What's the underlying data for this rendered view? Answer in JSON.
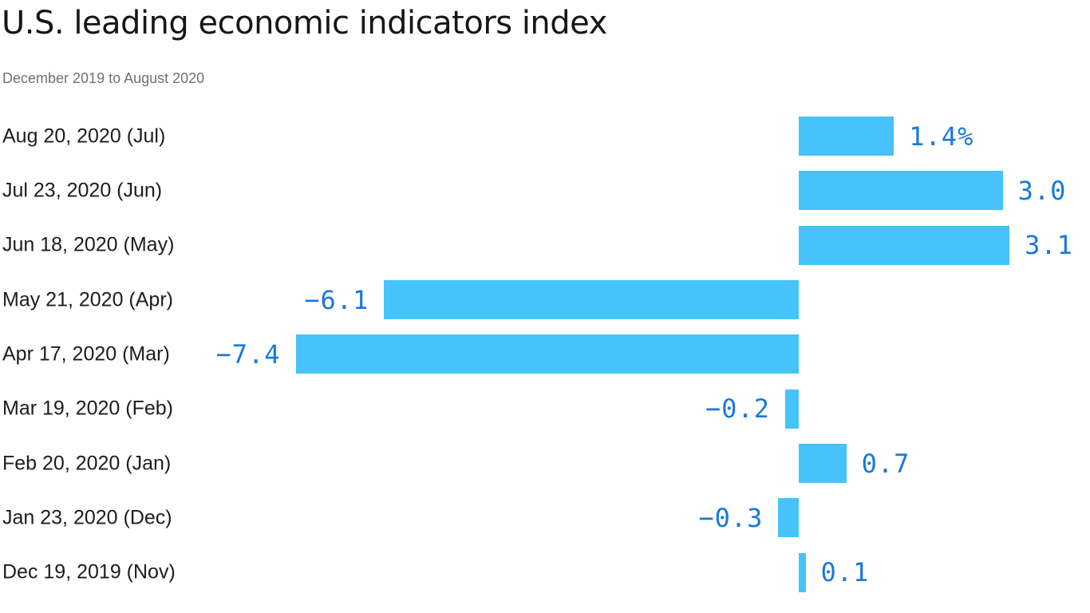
{
  "chart_data": {
    "type": "bar",
    "orientation": "horizontal",
    "title": "U.S. leading economic indicators index",
    "subtitle": "December 2019 to August 2020",
    "categories": [
      "Aug 20, 2020 (Jul)",
      "Jul 23, 2020 (Jun)",
      "Jun 18, 2020 (May)",
      "May 21, 2020 (Apr)",
      "Apr 17, 2020 (Mar)",
      "Mar 19, 2020 (Feb)",
      "Feb 20, 2020 (Jan)",
      "Jan 23, 2020 (Dec)",
      "Dec 19, 2019 (Nov)"
    ],
    "values": [
      1.4,
      3.0,
      3.1,
      -6.1,
      -7.4,
      -0.2,
      0.7,
      -0.3,
      0.1
    ],
    "value_labels": [
      "1.4%",
      "3.0",
      "3.1",
      "−6.1",
      "−7.4",
      "−0.2",
      "0.7",
      "−0.3",
      "0.1"
    ],
    "unit": "percent",
    "xlim": [
      -7.4,
      3.1
    ],
    "grid": "off",
    "legend": "none",
    "axis_line": "none",
    "colors": {
      "bar": "#45c3fa",
      "value_label": "#1878dd",
      "title": "#161616",
      "subtitle": "#6e7077",
      "category_label": "#1d1d1d",
      "background": "#ffffff"
    }
  }
}
